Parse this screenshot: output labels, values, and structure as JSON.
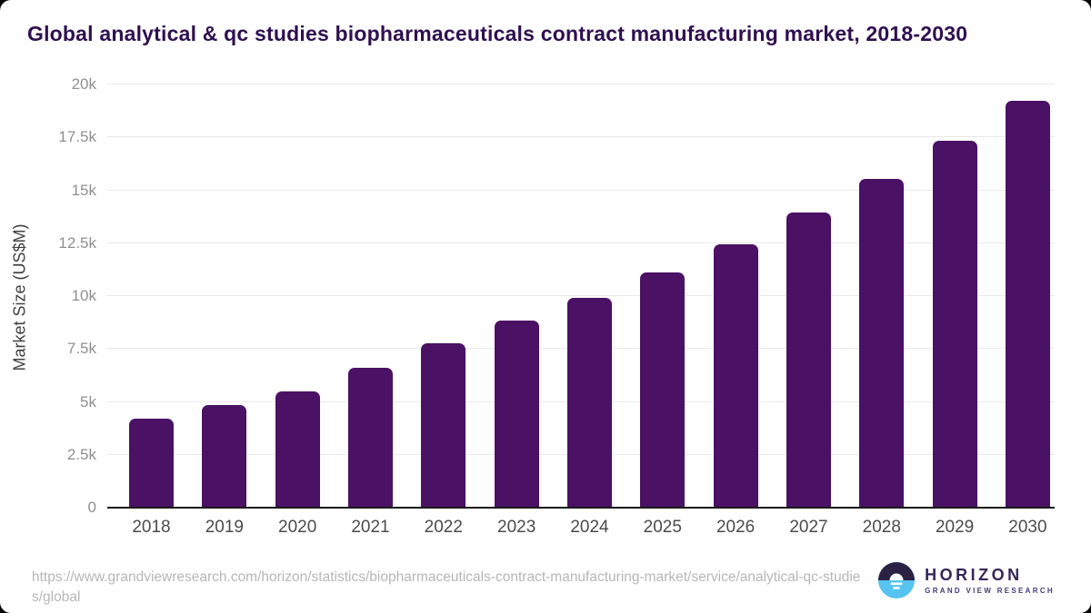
{
  "header": {
    "title": "Global analytical & qc studies biopharmaceuticals contract manufacturing market, 2018-2030"
  },
  "chart_data": {
    "type": "bar",
    "title": "Global analytical & qc studies biopharmaceuticals contract manufacturing market, 2018-2030",
    "categories": [
      "2018",
      "2019",
      "2020",
      "2021",
      "2022",
      "2023",
      "2024",
      "2025",
      "2026",
      "2027",
      "2028",
      "2029",
      "2030"
    ],
    "values": [
      4180,
      4800,
      5430,
      6550,
      7740,
      8780,
      9890,
      11060,
      12420,
      13920,
      15510,
      17280,
      19170
    ],
    "xlabel": "",
    "ylabel": "Market Size (US$M)",
    "ylim": [
      0,
      20000
    ],
    "y_ticks": [
      {
        "value": 0,
        "label": "0"
      },
      {
        "value": 2500,
        "label": "2.5k"
      },
      {
        "value": 5000,
        "label": "5k"
      },
      {
        "value": 7500,
        "label": "7.5k"
      },
      {
        "value": 10000,
        "label": "10k"
      },
      {
        "value": 12500,
        "label": "12.5k"
      },
      {
        "value": 15000,
        "label": "15k"
      },
      {
        "value": 17500,
        "label": "17.5k"
      },
      {
        "value": 20000,
        "label": "20k"
      }
    ],
    "grid": "horizontal",
    "legend": "none",
    "bar_color": "#4a1164"
  },
  "footer": {
    "source_url": "https://www.grandviewresearch.com/horizon/statistics/biopharmaceuticals-contract-manufacturing-market/service/analytical-qc-studies/global",
    "logo": {
      "name": "HORIZON",
      "subtitle": "GRAND VIEW RESEARCH"
    }
  },
  "colors": {
    "bar": "#4a1164",
    "title_text": "#2f1050",
    "gridline": "#e9e9e9",
    "axis_line": "#1a1a1a",
    "logo_dark": "#2b2145",
    "logo_blue": "#56c3f0"
  }
}
